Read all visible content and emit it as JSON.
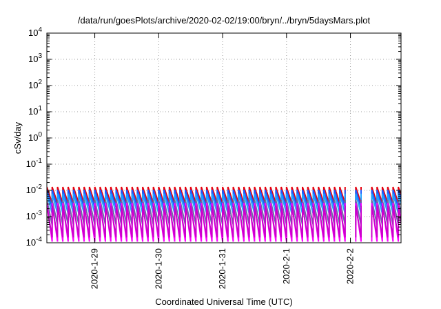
{
  "chart_data": {
    "type": "line",
    "title": "/data/run/goesPlots/archive/2020-02-02/19:00/bryn/../bryn/5daysMars.plot",
    "xlabel": "Coordinated Universal Time (UTC)",
    "ylabel": "cSv/day",
    "y_scale": "log",
    "ylim": [
      0.0001,
      10000
    ],
    "y_ticks": [
      {
        "value": 0.0001,
        "base": "10",
        "exp": "-4"
      },
      {
        "value": 0.001,
        "base": "10",
        "exp": "-3"
      },
      {
        "value": 0.01,
        "base": "10",
        "exp": "-2"
      },
      {
        "value": 0.1,
        "base": "10",
        "exp": "-1"
      },
      {
        "value": 1,
        "base": "10",
        "exp": "0"
      },
      {
        "value": 10,
        "base": "10",
        "exp": "1"
      },
      {
        "value": 100,
        "base": "10",
        "exp": "2"
      },
      {
        "value": 1000,
        "base": "10",
        "exp": "3"
      },
      {
        "value": 10000,
        "base": "10",
        "exp": "4"
      }
    ],
    "xlim": [
      "2020-01-28T06:00",
      "2020-02-02T19:00"
    ],
    "x_ticks": [
      {
        "value": "2020-01-29T00:00",
        "label": "2020-1-29"
      },
      {
        "value": "2020-01-30T00:00",
        "label": "2020-1-30"
      },
      {
        "value": "2020-01-31T00:00",
        "label": "2020-1-31"
      },
      {
        "value": "2020-02-01T00:00",
        "label": "2020-2-1"
      },
      {
        "value": "2020-02-02T00:00",
        "label": "2020-2-2"
      }
    ],
    "grid": true,
    "legend": "none",
    "gaps": [
      [
        "2020-02-01T23:20",
        "2020-02-02T01:25"
      ],
      [
        "2020-02-02T05:10",
        "2020-02-02T06:20"
      ]
    ],
    "sawtooth": {
      "period_hours": 2.0,
      "first_peak": "2020-01-28T06:00"
    },
    "series": [
      {
        "color": "#e8000b",
        "peak": 0.0135,
        "trough": 0.0032
      },
      {
        "color": "#1a5cff",
        "peak": 0.0105,
        "trough": 0.0022
      },
      {
        "color": "#1fa2ff",
        "peak": 0.0075,
        "trough": 0.0013
      },
      {
        "color": "#6a6aa8",
        "peak": 0.0043,
        "trough": 0.00048
      },
      {
        "color": "#ff00ff",
        "peak": 0.0033,
        "trough": 0.00011
      },
      {
        "color": "#cc00cc",
        "peak": 0.0026,
        "trough": 0.00016
      }
    ]
  }
}
